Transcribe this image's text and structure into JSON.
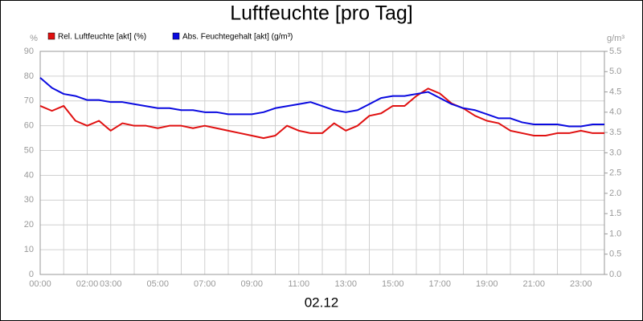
{
  "chart_data": {
    "type": "line",
    "title": "Luftfeuchte [pro Tag]",
    "xlabel": "02.12",
    "ylabel": "%",
    "y2label": "g/m³",
    "x": [
      0,
      0.5,
      1,
      1.5,
      2,
      2.5,
      3,
      3.5,
      4,
      4.5,
      5,
      5.5,
      6,
      6.5,
      7,
      7.5,
      8,
      8.5,
      9,
      9.5,
      10,
      10.5,
      11,
      11.5,
      12,
      12.5,
      13,
      13.5,
      14,
      14.5,
      15,
      15.5,
      16,
      16.5,
      17,
      17.5,
      18,
      18.5,
      19,
      19.5,
      20,
      20.5,
      21,
      21.5,
      22,
      22.5,
      23,
      23.5,
      24
    ],
    "series": [
      {
        "name": "Rel. Luftfeuchte [akt] (%)",
        "color": "#e01010",
        "values": [
          68,
          66,
          68,
          62,
          60,
          62,
          58,
          61,
          60,
          60,
          59,
          60,
          60,
          59,
          60,
          59,
          58,
          57,
          56,
          55,
          56,
          60,
          58,
          57,
          57,
          61,
          58,
          60,
          64,
          65,
          68,
          68,
          72,
          75,
          73,
          69,
          67,
          64,
          62,
          61,
          58,
          57,
          56,
          56,
          57,
          57,
          58,
          57,
          57
        ]
      },
      {
        "name": "Abs. Feuchtegehalt [akt] (g/m³)",
        "color": "#0a0ae0",
        "axis": "y2",
        "values": [
          4.85,
          4.6,
          4.45,
          4.4,
          4.3,
          4.3,
          4.25,
          4.25,
          4.2,
          4.15,
          4.1,
          4.1,
          4.05,
          4.05,
          4.0,
          4.0,
          3.95,
          3.95,
          3.95,
          4.0,
          4.1,
          4.15,
          4.2,
          4.25,
          4.15,
          4.05,
          4.0,
          4.05,
          4.2,
          4.35,
          4.4,
          4.4,
          4.45,
          4.5,
          4.35,
          4.2,
          4.1,
          4.05,
          3.95,
          3.85,
          3.85,
          3.75,
          3.7,
          3.7,
          3.7,
          3.65,
          3.65,
          3.7,
          3.7
        ]
      }
    ],
    "xlim": [
      0,
      24
    ],
    "xticks": [
      {
        "value": 0,
        "label": "00:00"
      },
      {
        "value": 1,
        "label": null
      },
      {
        "value": 2,
        "label": "02:00"
      },
      {
        "value": 3,
        "label": "03:00"
      },
      {
        "value": 4,
        "label": null
      },
      {
        "value": 5,
        "label": "05:00"
      },
      {
        "value": 6,
        "label": null
      },
      {
        "value": 7,
        "label": "07:00"
      },
      {
        "value": 8,
        "label": null
      },
      {
        "value": 9,
        "label": "09:00"
      },
      {
        "value": 10,
        "label": null
      },
      {
        "value": 11,
        "label": "11:00"
      },
      {
        "value": 12,
        "label": null
      },
      {
        "value": 13,
        "label": "13:00"
      },
      {
        "value": 14,
        "label": null
      },
      {
        "value": 15,
        "label": "15:00"
      },
      {
        "value": 16,
        "label": null
      },
      {
        "value": 17,
        "label": "17:00"
      },
      {
        "value": 18,
        "label": null
      },
      {
        "value": 19,
        "label": "19:00"
      },
      {
        "value": 20,
        "label": null
      },
      {
        "value": 21,
        "label": "21:00"
      },
      {
        "value": 22,
        "label": null
      },
      {
        "value": 23,
        "label": "23:00"
      }
    ],
    "ylim": [
      0,
      90
    ],
    "yticks": [
      0,
      10,
      20,
      30,
      40,
      50,
      60,
      70,
      80,
      90
    ],
    "y2lim": [
      0,
      5.5
    ],
    "y2ticks": [
      {
        "value": 0,
        "label": "0.0"
      },
      0.5,
      {
        "value": 1,
        "label": "1.0"
      },
      1.5,
      {
        "value": 2,
        "label": "2.0"
      },
      2.5,
      {
        "value": 3,
        "label": "3.0"
      },
      3.5,
      {
        "value": 4,
        "label": "4.0"
      },
      4.5,
      {
        "value": 5,
        "label": "5.0"
      },
      5.5
    ],
    "grid": true
  }
}
